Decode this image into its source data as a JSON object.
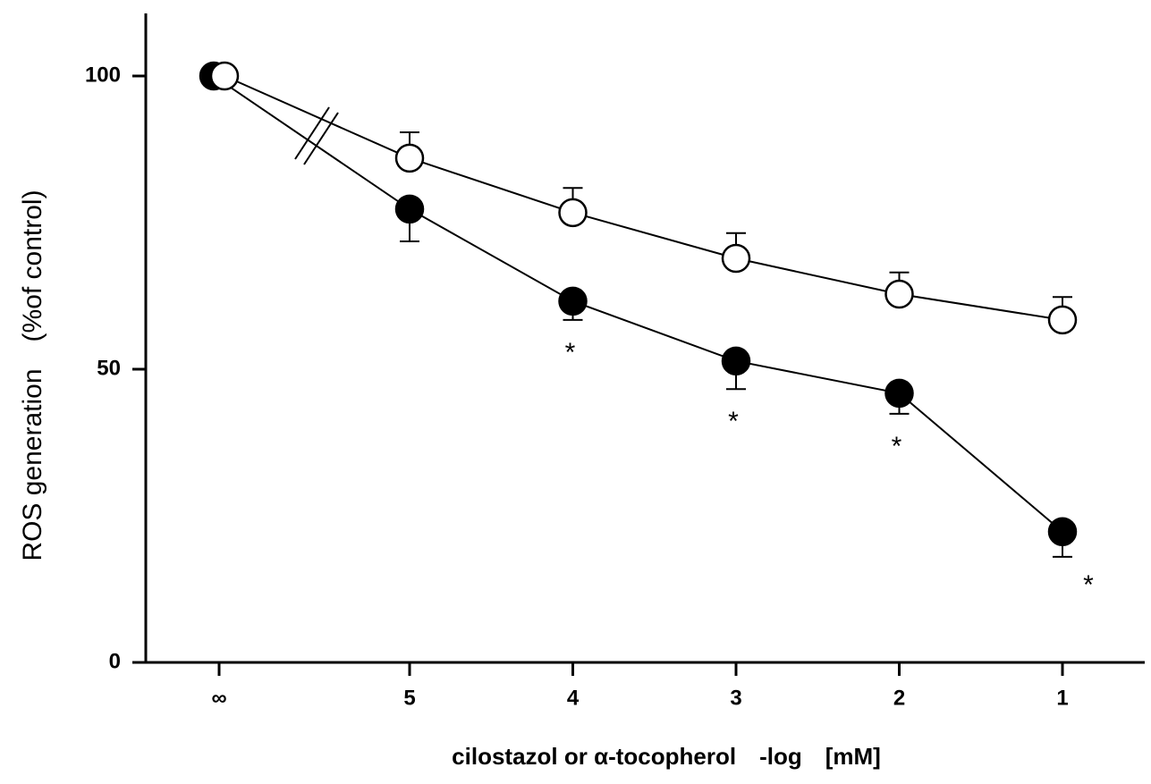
{
  "chart_data": {
    "type": "line",
    "y_label": "ROS generation　(%of control)",
    "x_label": "cilostazol or α-tocopherol　-log　[mM]",
    "categories": [
      "∞",
      "5",
      "4",
      "3",
      "2",
      "1"
    ],
    "series": [
      {
        "color": "#000000",
        "marker": "filled",
        "error_direction": "down",
        "values": [
          100,
          77.3,
          61.6,
          51.4,
          45.9,
          22.3
        ],
        "errors": [
          0,
          5.5,
          3.2,
          4.8,
          3.5,
          4.3
        ],
        "annotations": [
          null,
          null,
          "*",
          "*",
          "*",
          "*"
        ]
      },
      {
        "color": "#000000",
        "marker": "open",
        "error_direction": "up",
        "values": [
          100,
          86.0,
          76.7,
          68.9,
          62.8,
          58.4
        ],
        "errors": [
          0,
          4.4,
          4.2,
          4.3,
          3.7,
          3.9
        ]
      }
    ],
    "ylim": [
      0,
      110
    ],
    "yticks": [
      0,
      50,
      100
    ]
  }
}
